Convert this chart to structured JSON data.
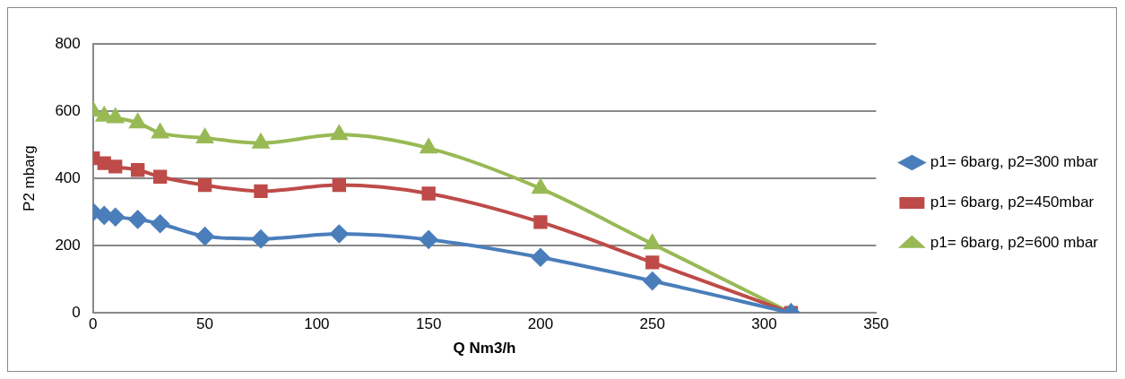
{
  "chart_data": {
    "type": "line",
    "xlabel": "Q Nm3/h",
    "ylabel": "P2 mbarg",
    "x": [
      0,
      5,
      10,
      20,
      30,
      50,
      75,
      110,
      150,
      200,
      250,
      312
    ],
    "series": [
      {
        "name": "p1= 6barg, p2=300 mbar",
        "color": "#4a7ebb",
        "marker": "diamond",
        "values": [
          300,
          290,
          285,
          278,
          265,
          228,
          220,
          235,
          218,
          165,
          95,
          0
        ]
      },
      {
        "name": "p1= 6barg, p2=450mbar",
        "color": "#be4b48",
        "marker": "square",
        "values": [
          460,
          445,
          435,
          425,
          405,
          380,
          362,
          380,
          355,
          270,
          150,
          0
        ]
      },
      {
        "name": "p1= 6barg, p2=600 mbar",
        "color": "#98b954",
        "marker": "triangle",
        "values": [
          600,
          585,
          580,
          565,
          535,
          520,
          505,
          530,
          490,
          370,
          205,
          0
        ]
      }
    ],
    "xlim": [
      0,
      350
    ],
    "xticks": [
      0,
      50,
      100,
      150,
      200,
      250,
      300,
      350
    ],
    "ylim": [
      0,
      800
    ],
    "yticks": [
      0,
      200,
      400,
      600,
      800
    ],
    "grid": "y",
    "legend": "right",
    "line_style": "solid"
  }
}
